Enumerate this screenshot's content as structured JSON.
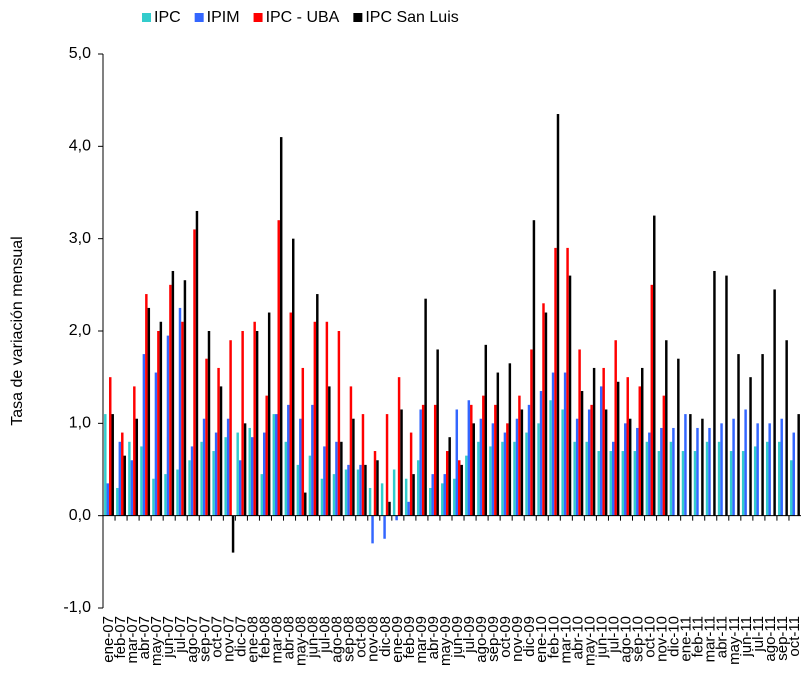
{
  "chart_data": {
    "type": "bar",
    "y_label": "Tasa de variación mensual",
    "categories": [
      "ene-07",
      "feb-07",
      "mar-07",
      "abr-07",
      "may-07",
      "jun-07",
      "jul-07",
      "ago-07",
      "sep-07",
      "oct-07",
      "nov-07",
      "dic-07",
      "ene-08",
      "feb-08",
      "mar-08",
      "abr-08",
      "may-08",
      "jun-08",
      "jul-08",
      "ago-08",
      "sep-08",
      "oct-08",
      "nov-08",
      "dic-08",
      "ene-09",
      "feb-09",
      "mar-09",
      "abr-09",
      "may-09",
      "jun-09",
      "jul-09",
      "ago-09",
      "sep-09",
      "oct-09",
      "nov-09",
      "dic-09",
      "ene-10",
      "feb-10",
      "mar-10",
      "abr-10",
      "may-10",
      "jun-10",
      "jul-10",
      "ago-10",
      "sep-10",
      "oct-10",
      "nov-10",
      "dic-10",
      "ene-11",
      "feb-11",
      "mar-11",
      "abr-11",
      "may-11",
      "jun-11",
      "jul-11",
      "ago-11",
      "sep-11",
      "oct-11"
    ],
    "series": [
      {
        "name": "IPC",
        "color": "#33cccc",
        "values": [
          1.1,
          0.3,
          0.8,
          0.75,
          0.4,
          0.45,
          0.5,
          0.6,
          0.8,
          0.7,
          0.85,
          0.9,
          0.95,
          0.45,
          1.1,
          0.8,
          0.55,
          0.65,
          0.4,
          0.45,
          0.5,
          0.5,
          0.3,
          0.35,
          0.5,
          0.4,
          0.6,
          0.3,
          0.35,
          0.4,
          0.65,
          0.8,
          0.75,
          0.8,
          0.8,
          0.9,
          1.0,
          1.25,
          1.15,
          0.8,
          0.8,
          0.7,
          0.7,
          0.7,
          0.7,
          0.8,
          0.7,
          0.8,
          0.7,
          0.7,
          0.8,
          0.8,
          0.7,
          0.7,
          0.75,
          0.8,
          0.8,
          0.6
        ]
      },
      {
        "name": "IPIM",
        "color": "#3366ff",
        "values": [
          0.35,
          0.8,
          0.6,
          1.75,
          1.55,
          1.95,
          2.25,
          0.75,
          1.05,
          0.9,
          1.05,
          0.6,
          0.85,
          0.9,
          1.1,
          1.2,
          1.05,
          1.2,
          0.75,
          0.8,
          0.55,
          0.55,
          -0.3,
          -0.25,
          -0.05,
          0.15,
          1.15,
          0.45,
          0.45,
          1.15,
          1.25,
          1.05,
          1.0,
          0.9,
          1.05,
          1.2,
          1.35,
          1.55,
          1.55,
          1.05,
          1.15,
          1.4,
          0.8,
          1.0,
          0.95,
          0.9,
          0.95,
          0.95,
          1.1,
          0.95,
          0.95,
          1.0,
          1.05,
          1.15,
          1.0,
          1.0,
          1.05,
          0.9
        ]
      },
      {
        "name": "IPC - UBA",
        "color": "#ff0000",
        "values": [
          1.5,
          0.9,
          1.4,
          2.4,
          2.0,
          2.5,
          2.1,
          3.1,
          1.7,
          1.6,
          1.9,
          2.0,
          2.1,
          1.3,
          3.2,
          2.2,
          1.6,
          2.1,
          2.1,
          2.0,
          1.4,
          1.1,
          0.7,
          1.1,
          1.5,
          0.9,
          1.2,
          1.2,
          0.7,
          0.6,
          1.2,
          1.3,
          1.2,
          1.0,
          1.3,
          1.8,
          2.3,
          2.9,
          2.9,
          1.8,
          1.2,
          1.6,
          1.9,
          1.5,
          1.4,
          2.5,
          1.3,
          null,
          null,
          null,
          null,
          null,
          null,
          null,
          null,
          null,
          null,
          null
        ]
      },
      {
        "name": "IPC San Luis",
        "color": "#000000",
        "values": [
          1.1,
          0.65,
          1.05,
          2.25,
          2.1,
          2.65,
          2.55,
          3.3,
          2.0,
          1.4,
          -0.4,
          1.0,
          2.0,
          2.2,
          4.1,
          3.0,
          0.25,
          2.4,
          1.4,
          0.8,
          1.05,
          0.55,
          0.6,
          0.15,
          1.15,
          0.45,
          2.35,
          1.8,
          0.85,
          0.55,
          1.0,
          1.85,
          1.55,
          1.65,
          1.15,
          3.2,
          2.2,
          4.35,
          2.6,
          1.35,
          1.6,
          1.15,
          1.45,
          1.05,
          1.6,
          3.25,
          1.9,
          1.7,
          1.1,
          1.05,
          2.65,
          2.6,
          1.75,
          1.5,
          1.75,
          2.45,
          1.9,
          1.1
        ]
      }
    ],
    "ylim": [
      -1,
      5
    ],
    "yticks": [
      {
        "value": -1,
        "label": "-1,0"
      },
      {
        "value": 0,
        "label": "0,0"
      },
      {
        "value": 1,
        "label": "1,0"
      },
      {
        "value": 2,
        "label": "2,0"
      },
      {
        "value": 3,
        "label": "3,0"
      },
      {
        "value": 4,
        "label": "4,0"
      },
      {
        "value": 5,
        "label": "5,0"
      }
    ],
    "legend": "top"
  }
}
